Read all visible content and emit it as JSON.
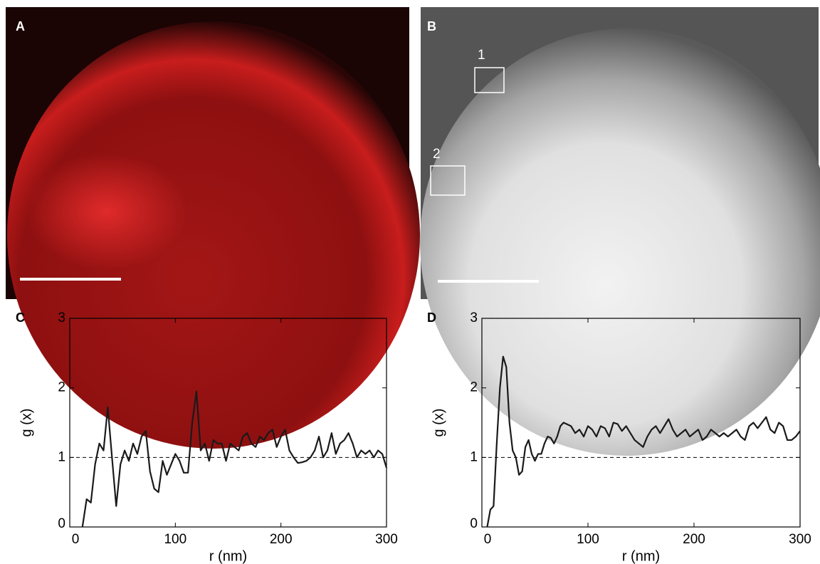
{
  "panels": {
    "a": {
      "label": "A"
    },
    "b": {
      "label": "B",
      "regions": [
        "1",
        "2"
      ]
    }
  },
  "chart_data": [
    {
      "type": "line",
      "panel": "C",
      "x_label": "r (nm)",
      "y_label": "g (x)",
      "xlim": [
        0,
        300
      ],
      "ylim": [
        0,
        3
      ],
      "xticks": [
        0,
        100,
        200,
        300
      ],
      "yticks": [
        0,
        1,
        2,
        3
      ],
      "reference_line": 1,
      "x": [
        12,
        16,
        20,
        24,
        28,
        32,
        36,
        40,
        44,
        48,
        52,
        56,
        60,
        64,
        68,
        72,
        76,
        80,
        84,
        88,
        92,
        96,
        100,
        104,
        108,
        112,
        116,
        120,
        124,
        128,
        132,
        136,
        140,
        144,
        148,
        152,
        156,
        160,
        164,
        168,
        172,
        176,
        180,
        184,
        188,
        192,
        196,
        200,
        204,
        208,
        212,
        216,
        220,
        224,
        228,
        232,
        236,
        240,
        244,
        248,
        252,
        256,
        260,
        264,
        268,
        272,
        276,
        280,
        284,
        288,
        292,
        296,
        300
      ],
      "series": [
        {
          "color": "#1a1a1a",
          "values": [
            0,
            0.4,
            0.35,
            0.9,
            1.2,
            1.1,
            1.72,
            1.0,
            0.3,
            0.9,
            1.1,
            0.95,
            1.2,
            1.05,
            1.3,
            1.38,
            0.8,
            0.55,
            0.5,
            0.95,
            0.75,
            0.9,
            1.05,
            0.95,
            0.78,
            0.78,
            1.5,
            1.95,
            1.1,
            1.2,
            0.95,
            1.25,
            1.2,
            1.2,
            0.95,
            1.2,
            1.15,
            1.1,
            1.3,
            1.35,
            1.2,
            1.15,
            1.3,
            1.25,
            1.35,
            1.4,
            1.15,
            1.3,
            1.4,
            1.1,
            1.0,
            0.92,
            0.93,
            0.95,
            1.0,
            1.1,
            1.3,
            1.0,
            1.1,
            1.35,
            1.05,
            1.2,
            1.25,
            1.35,
            1.2,
            1.0,
            1.1,
            1.05,
            1.1,
            1.0,
            1.1,
            1.05,
            0.85
          ]
        }
      ]
    },
    {
      "type": "line",
      "panel": "D",
      "x_label": "r (nm)",
      "y_label": "g (x)",
      "xlim": [
        0,
        300
      ],
      "ylim": [
        0,
        3
      ],
      "xticks": [
        0,
        100,
        200,
        300
      ],
      "yticks": [
        0,
        1,
        2,
        3
      ],
      "reference_line": 1,
      "x": [
        5,
        8,
        11,
        14,
        17,
        20,
        23,
        26,
        29,
        32,
        35,
        38,
        41,
        44,
        47,
        50,
        53,
        56,
        59,
        62,
        65,
        68,
        71,
        74,
        77,
        80,
        84,
        88,
        92,
        96,
        100,
        104,
        108,
        112,
        116,
        120,
        124,
        128,
        132,
        136,
        140,
        144,
        148,
        152,
        156,
        160,
        164,
        168,
        172,
        176,
        180,
        184,
        188,
        192,
        196,
        200,
        204,
        208,
        212,
        216,
        220,
        224,
        228,
        232,
        236,
        240,
        244,
        248,
        252,
        256,
        260,
        264,
        268,
        272,
        276,
        280,
        284,
        288,
        292,
        296,
        300
      ],
      "series": [
        {
          "color": "#1a1a1a",
          "values": [
            0,
            0.25,
            0.3,
            1.2,
            2.0,
            2.45,
            2.3,
            1.5,
            1.1,
            1.0,
            0.75,
            0.8,
            1.15,
            1.25,
            1.05,
            0.95,
            1.05,
            1.05,
            1.2,
            1.3,
            1.28,
            1.2,
            1.3,
            1.45,
            1.5,
            1.48,
            1.45,
            1.35,
            1.4,
            1.3,
            1.45,
            1.4,
            1.3,
            1.45,
            1.42,
            1.3,
            1.5,
            1.48,
            1.38,
            1.45,
            1.35,
            1.25,
            1.2,
            1.15,
            1.3,
            1.4,
            1.45,
            1.35,
            1.45,
            1.55,
            1.4,
            1.3,
            1.35,
            1.4,
            1.3,
            1.35,
            1.4,
            1.25,
            1.3,
            1.4,
            1.35,
            1.3,
            1.35,
            1.3,
            1.35,
            1.4,
            1.3,
            1.25,
            1.45,
            1.5,
            1.42,
            1.5,
            1.58,
            1.4,
            1.35,
            1.5,
            1.45,
            1.25,
            1.25,
            1.3,
            1.38
          ]
        }
      ]
    }
  ]
}
